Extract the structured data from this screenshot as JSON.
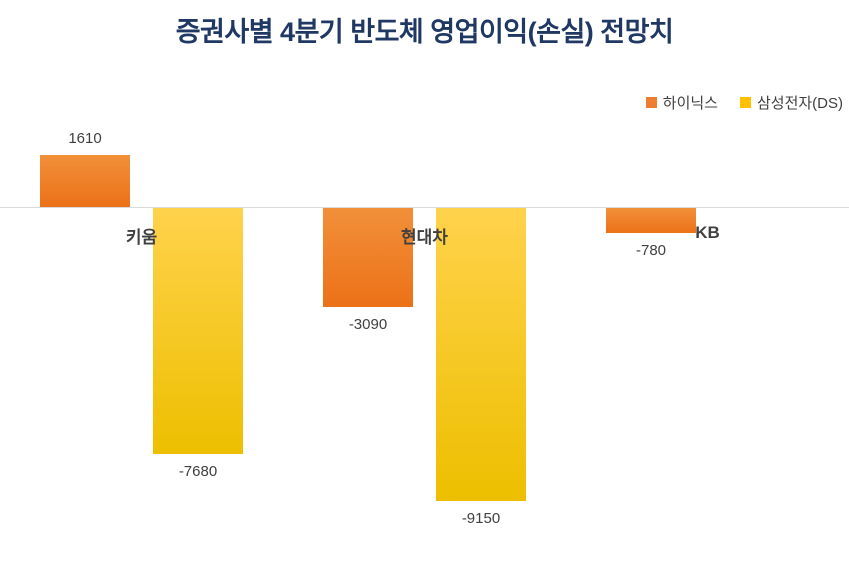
{
  "chart_data": {
    "type": "bar",
    "title": "증권사별 4분기 반도체 영업이익(손실) 전망치",
    "categories": [
      "키움",
      "현대차",
      "KB"
    ],
    "category_keys": [
      "kiwoom",
      "hyundai",
      "kb"
    ],
    "series": [
      {
        "key": "hynix",
        "name": "하이닉스",
        "color": "#ED7D31",
        "gradient": [
          "#F1903A",
          "#EC7117"
        ],
        "values": [
          1610,
          -3090,
          -780
        ]
      },
      {
        "key": "samsung-ds",
        "name": "삼성전자(DS)",
        "color": "#FFC000",
        "gradient": [
          "#FFD24C",
          "#EDBF00"
        ],
        "values": [
          -7680,
          -9150,
          null
        ]
      }
    ],
    "data_labels": [
      [
        "1610",
        "-3090",
        "-780"
      ],
      [
        "-7680",
        "-9150",
        ""
      ]
    ],
    "legend_position": "top-right",
    "grid": false,
    "zero_line": true,
    "colors": {
      "title": "#203864",
      "labels": "#404040",
      "axis_line": "#D9D9D9",
      "background": "#FFFFFF"
    }
  }
}
